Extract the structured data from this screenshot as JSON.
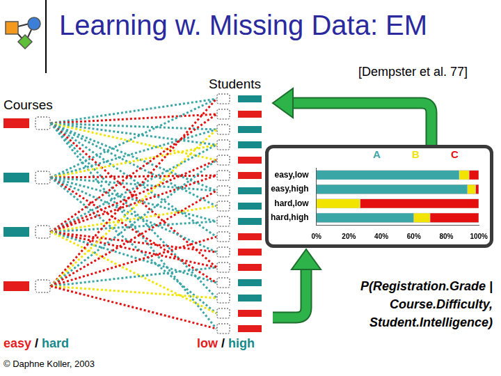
{
  "header": {
    "title": "Learning w. Missing Data: EM",
    "citation": "[Dempster et al. 77]"
  },
  "diagram": {
    "students_label": "Students",
    "courses_label": "Courses",
    "key": {
      "course": {
        "values": [
          {
            "label": "easy",
            "color": "#e41c1c"
          },
          {
            "label": "hard",
            "color": "#178a8a"
          }
        ],
        "separator": "/"
      },
      "student": {
        "values": [
          {
            "label": "low",
            "color": "#e41c1c"
          },
          {
            "label": "high",
            "color": "#178a8a"
          }
        ],
        "separator": "/"
      }
    },
    "courses": [
      "easy",
      "hard",
      "hard",
      "easy"
    ],
    "students": [
      "high",
      "low",
      "high",
      "high",
      "low",
      "low",
      "high",
      "high",
      "high",
      "low",
      "low",
      "low",
      "high",
      "high",
      "low",
      "low"
    ],
    "registrations": [
      [
        0,
        0,
        "A"
      ],
      [
        0,
        1,
        "C"
      ],
      [
        0,
        2,
        "A"
      ],
      [
        0,
        3,
        "A"
      ],
      [
        0,
        4,
        "B"
      ],
      [
        0,
        6,
        "A"
      ],
      [
        0,
        7,
        "A"
      ],
      [
        0,
        9,
        "A"
      ],
      [
        0,
        11,
        "C"
      ],
      [
        0,
        13,
        "A"
      ],
      [
        0,
        15,
        "A"
      ],
      [
        1,
        0,
        "A"
      ],
      [
        1,
        2,
        "A"
      ],
      [
        1,
        3,
        "B"
      ],
      [
        1,
        5,
        "C"
      ],
      [
        1,
        6,
        "A"
      ],
      [
        1,
        8,
        "A"
      ],
      [
        1,
        10,
        "A"
      ],
      [
        1,
        12,
        "C"
      ],
      [
        1,
        14,
        "A"
      ],
      [
        2,
        1,
        "C"
      ],
      [
        2,
        3,
        "A"
      ],
      [
        2,
        4,
        "C"
      ],
      [
        2,
        5,
        "C"
      ],
      [
        2,
        7,
        "B"
      ],
      [
        2,
        8,
        "A"
      ],
      [
        2,
        10,
        "C"
      ],
      [
        2,
        11,
        "C"
      ],
      [
        2,
        12,
        "A"
      ],
      [
        2,
        14,
        "B"
      ],
      [
        3,
        0,
        "C"
      ],
      [
        3,
        2,
        "B"
      ],
      [
        3,
        4,
        "A"
      ],
      [
        3,
        6,
        "C"
      ],
      [
        3,
        9,
        "C"
      ],
      [
        3,
        11,
        "A"
      ],
      [
        3,
        13,
        "B"
      ],
      [
        3,
        15,
        "C"
      ]
    ]
  },
  "formula": [
    "P(Registration.Grade |",
    "Course.Difficulty,",
    "Student.Intelligence)"
  ],
  "copyright": "© Daphne Koller, 2003",
  "chart_data": {
    "type": "bar",
    "orientation": "horizontal",
    "stacked": true,
    "grid": false,
    "categories": [
      "easy,low",
      "easy,high",
      "hard,low",
      "hard,high"
    ],
    "series": [
      {
        "name": "A",
        "color": "#3aa6a6",
        "values": [
          88,
          93,
          0,
          60
        ]
      },
      {
        "name": "B",
        "color": "#f0e400",
        "values": [
          6,
          5,
          27,
          10
        ]
      },
      {
        "name": "C",
        "color": "#e41010",
        "values": [
          6,
          2,
          73,
          30
        ]
      }
    ],
    "xlim": [
      0,
      100
    ],
    "xticks": [
      {
        "value": 0,
        "label": "0%"
      },
      {
        "value": 20,
        "label": "20%"
      },
      {
        "value": 40,
        "label": "40%"
      },
      {
        "value": 60,
        "label": "60%"
      },
      {
        "value": 80,
        "label": "80%"
      },
      {
        "value": 100,
        "label": "100%"
      }
    ]
  }
}
